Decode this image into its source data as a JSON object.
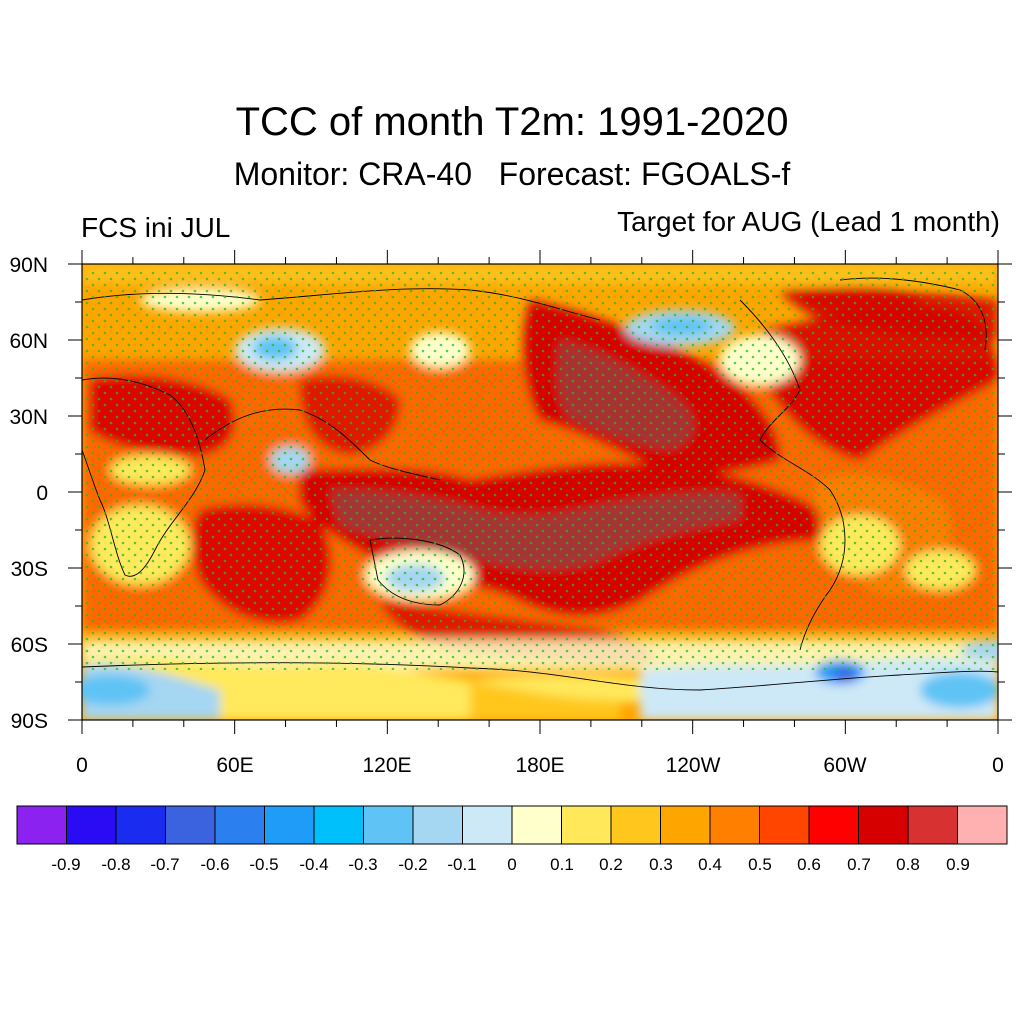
{
  "title": "TCC of month T2m: 1991-2020",
  "subtitle": "Monitor: CRA-40   Forecast: FGOALS-f",
  "left_label": "FCS ini JUL",
  "right_label": "Target for AUG (Lead 1 month)",
  "map": {
    "lat_ticks": [
      "90N",
      "60N",
      "30N",
      "0",
      "30S",
      "60S",
      "90S"
    ],
    "lon_ticks": [
      "0",
      "60E",
      "120E",
      "180E",
      "120W",
      "60W",
      "0"
    ],
    "lat_range": [
      -90,
      90
    ],
    "lon_range": [
      0,
      360
    ]
  },
  "colorbar": {
    "labels": [
      "-0.9",
      "-0.8",
      "-0.7",
      "-0.6",
      "-0.5",
      "-0.4",
      "-0.3",
      "-0.2",
      "-0.1",
      "0",
      "0.1",
      "0.2",
      "0.3",
      "0.4",
      "0.5",
      "0.6",
      "0.7",
      "0.8",
      "0.9"
    ],
    "colors": [
      "#8b22f0",
      "#2a0cf4",
      "#1a2cf0",
      "#3b63e0",
      "#2b7fee",
      "#1e9cf8",
      "#00c0fb",
      "#5fc3f5",
      "#a5d6f2",
      "#cde8f7",
      "#ffffcc",
      "#ffe95b",
      "#ffc71e",
      "#ffa500",
      "#ff7f00",
      "#ff4500",
      "#ff0000",
      "#d70000",
      "#d83131",
      "#ffb1b1"
    ]
  },
  "stipple_color": "#22bb22",
  "coastline_color": "#000000"
}
